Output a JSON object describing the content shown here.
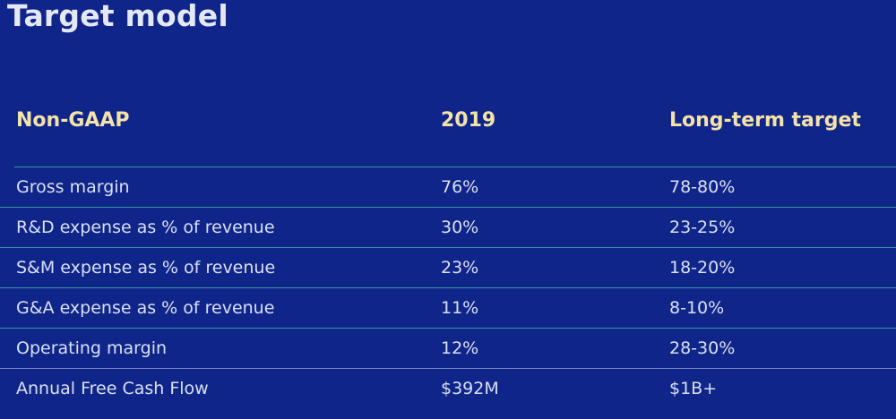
{
  "title": "Target model",
  "table": {
    "headers": [
      "Non-GAAP",
      "2019",
      "Long-term target"
    ],
    "rows": [
      [
        "Gross margin",
        "76%",
        "78-80%"
      ],
      [
        "R&D expense as % of revenue",
        "30%",
        "23-25%"
      ],
      [
        "S&M expense as % of revenue",
        "23%",
        "18-20%"
      ],
      [
        "G&A expense as % of revenue",
        "11%",
        "8-10%"
      ],
      [
        "Operating margin",
        "12%",
        "28-30%"
      ],
      [
        "Annual Free Cash Flow",
        "$392M",
        "$1B+"
      ]
    ]
  },
  "colors": {
    "background": "#10258a",
    "header_text": "#f4e3a9",
    "row_divider": "#2e9c9c"
  }
}
